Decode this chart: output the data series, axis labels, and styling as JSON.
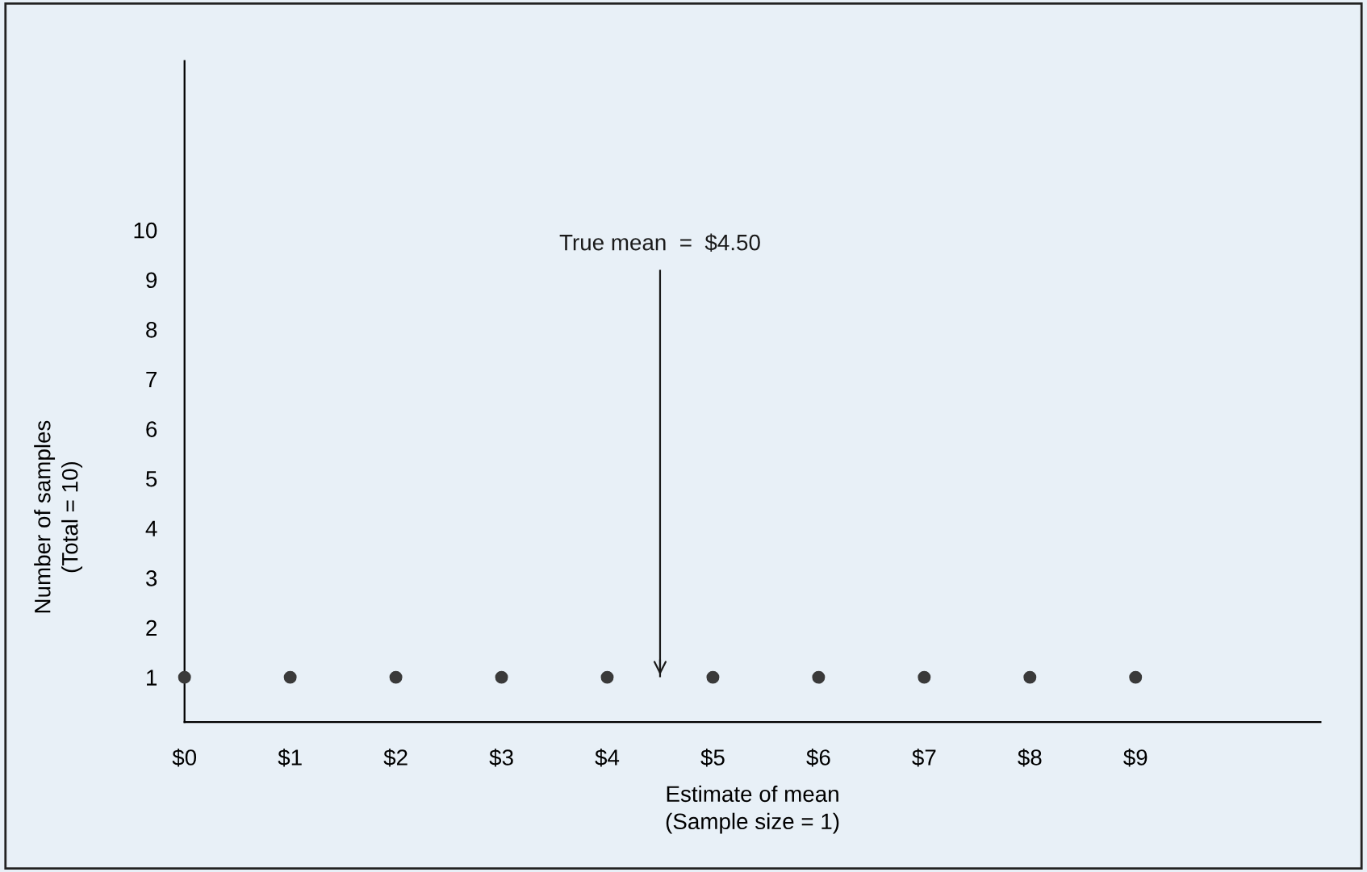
{
  "chart_data": {
    "type": "scatter",
    "xlabel": "Estimate of mean\n(Sample size = 1)",
    "ylabel": "Number of samples\n(Total = 10)",
    "x": [
      0,
      1,
      2,
      3,
      4,
      5,
      6,
      7,
      8,
      9
    ],
    "series": [
      {
        "color": "#3a3a3a",
        "values": [
          1,
          1,
          1,
          1,
          1,
          1,
          1,
          1,
          1,
          1
        ]
      }
    ],
    "xlim": [
      0,
      10.75
    ],
    "ylim": [
      0.1,
      13.4
    ],
    "xticks": [
      {
        "value": 0,
        "label": "$0"
      },
      {
        "value": 1,
        "label": "$1"
      },
      {
        "value": 2,
        "label": "$2"
      },
      {
        "value": 3,
        "label": "$3"
      },
      {
        "value": 4,
        "label": "$4"
      },
      {
        "value": 5,
        "label": "$5"
      },
      {
        "value": 6,
        "label": "$6"
      },
      {
        "value": 7,
        "label": "$7"
      },
      {
        "value": 8,
        "label": "$8"
      },
      {
        "value": 9,
        "label": "$9"
      }
    ],
    "yticks": [
      1,
      2,
      3,
      4,
      5,
      6,
      7,
      8,
      9,
      10
    ],
    "ref_lines": [
      {
        "axis": "x",
        "value": 4.5,
        "label": "True mean  =  $4.50",
        "color": "#1a1a1a"
      }
    ],
    "marker": "circle",
    "grid": false,
    "legend": false
  }
}
